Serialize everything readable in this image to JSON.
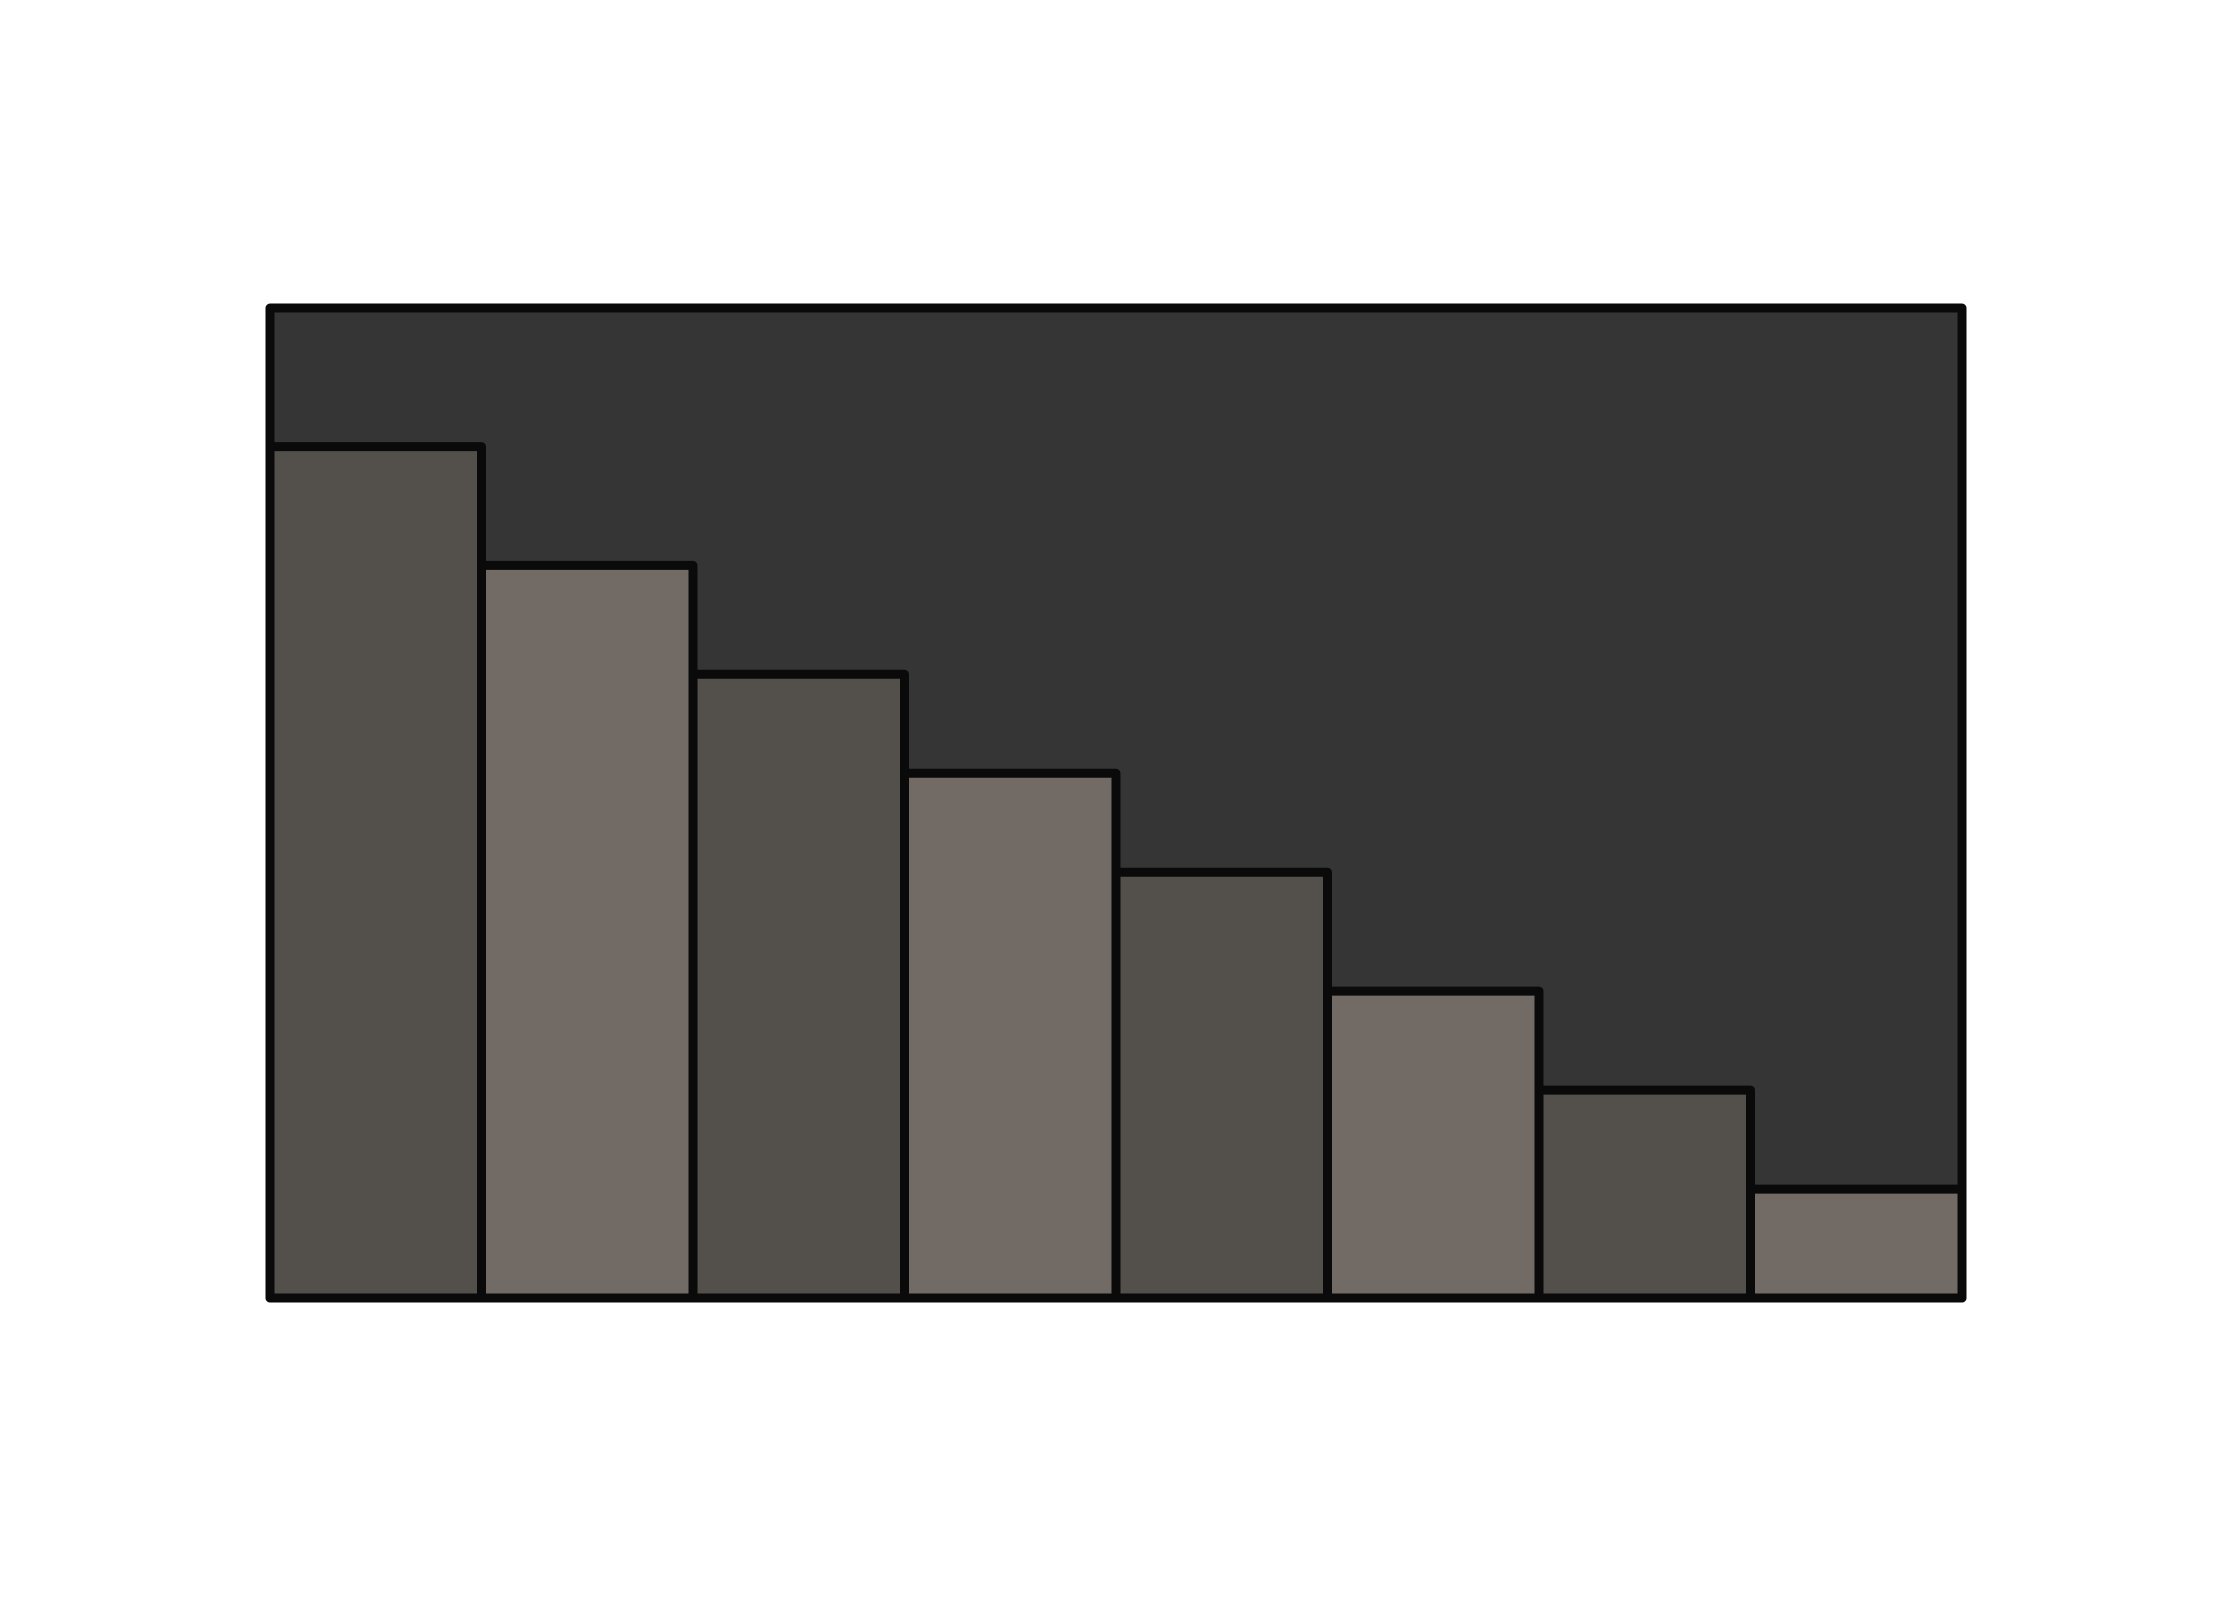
{
  "chart_data": {
    "type": "bar",
    "categories": [
      "",
      "",
      "",
      "",
      "",
      "",
      "",
      ""
    ],
    "values": [
      86,
      74,
      63,
      53,
      43,
      31,
      21,
      11
    ],
    "ylim": [
      0,
      100
    ],
    "grid": false,
    "legend": "none",
    "title": "",
    "xlabel": "",
    "ylabel": ""
  },
  "colors": {
    "page_background": "#ffffff",
    "plot_background": "#353535",
    "bar_dark": "#534f4a",
    "bar_light": "#716a65",
    "outline": "#0a0a0a"
  }
}
